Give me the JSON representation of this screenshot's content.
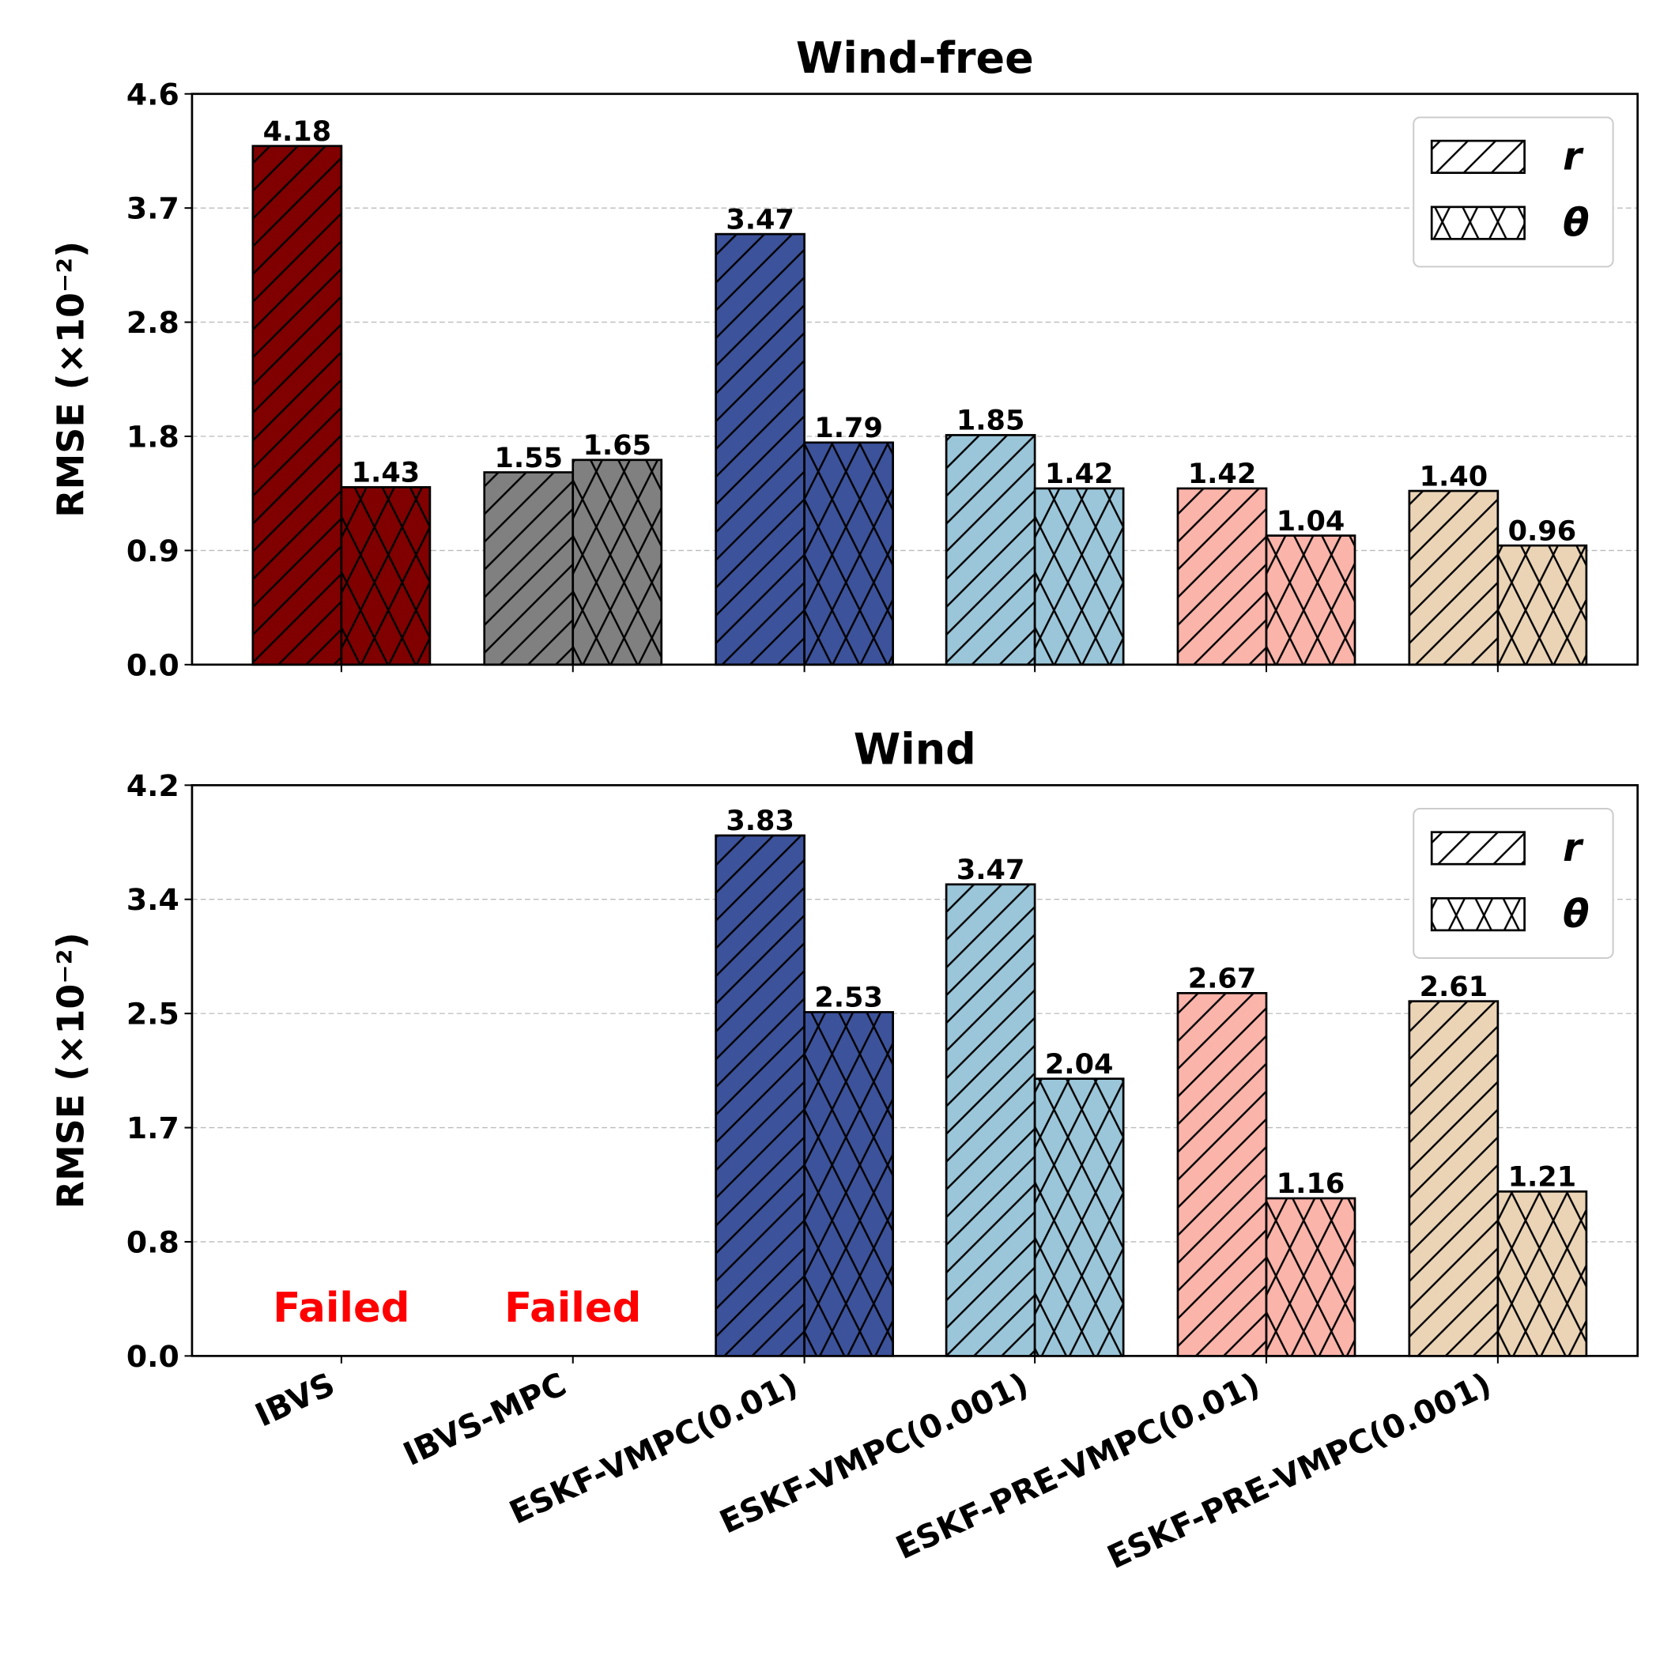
{
  "chart_data": [
    {
      "type": "bar",
      "title": "Wind-free",
      "ylabel": "RMSE (×10⁻²)",
      "xlabel": "",
      "ylim": [
        0,
        4.6
      ],
      "yticks": [
        0,
        0.92,
        1.84,
        2.76,
        3.68,
        4.6
      ],
      "ytick_labels": [
        "0.0",
        "0.9",
        "1.8",
        "2.8",
        "3.7",
        "4.6"
      ],
      "grid": "y dashed",
      "legend": "top-right",
      "categories": [
        "IBVS",
        "IBVS-MPC",
        "ESKF-VMPC(0.01)",
        "ESKF-VMPC(0.001)",
        "ESKF-PRE-VMPC(0.01)",
        "ESKF-PRE-VMPC(0.001)"
      ],
      "colors": [
        "#800000",
        "#808080",
        "#3c529b",
        "#9bc6d9",
        "#fbb4aa",
        "#ebd4b6"
      ],
      "series": [
        {
          "name": "r",
          "hatch": "diagonal",
          "values": [
            4.18,
            1.55,
            3.47,
            1.85,
            1.42,
            1.4
          ],
          "labels": [
            "4.18",
            "1.55",
            "3.47",
            "1.85",
            "1.42",
            "1.40"
          ]
        },
        {
          "name": "θ",
          "hatch": "cross",
          "values": [
            1.43,
            1.65,
            1.79,
            1.42,
            1.04,
            0.96
          ],
          "labels": [
            "1.43",
            "1.65",
            "1.79",
            "1.42",
            "1.04",
            "0.96"
          ]
        }
      ],
      "annotations": []
    },
    {
      "type": "bar",
      "title": "Wind",
      "ylabel": "RMSE (×10⁻²)",
      "xlabel": "",
      "ylim": [
        0,
        4.2
      ],
      "yticks": [
        0,
        0.84,
        1.68,
        2.52,
        3.36,
        4.2
      ],
      "ytick_labels": [
        "0.0",
        "0.8",
        "1.7",
        "2.5",
        "3.4",
        "4.2"
      ],
      "grid": "y dashed",
      "legend": "top-right",
      "categories": [
        "IBVS",
        "IBVS-MPC",
        "ESKF-VMPC(0.01)",
        "ESKF-VMPC(0.001)",
        "ESKF-PRE-VMPC(0.01)",
        "ESKF-PRE-VMPC(0.001)"
      ],
      "colors": [
        "#800000",
        "#808080",
        "#3c529b",
        "#9bc6d9",
        "#fbb4aa",
        "#ebd4b6"
      ],
      "series": [
        {
          "name": "r",
          "hatch": "diagonal",
          "values": [
            null,
            null,
            3.83,
            3.47,
            2.67,
            2.61
          ],
          "labels": [
            "",
            "",
            "3.83",
            "3.47",
            "2.67",
            "2.61"
          ]
        },
        {
          "name": "θ",
          "hatch": "cross",
          "values": [
            null,
            null,
            2.53,
            2.04,
            1.16,
            1.21
          ],
          "labels": [
            "",
            "",
            "2.53",
            "2.04",
            "1.16",
            "1.21"
          ]
        }
      ],
      "annotations": [
        "Failed",
        "Failed"
      ],
      "annotation_color": "#ff0000"
    }
  ]
}
